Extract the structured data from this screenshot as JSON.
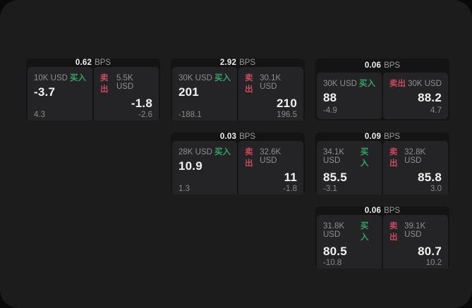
{
  "labels": {
    "bps_unit": "BPS",
    "buy": "买入",
    "sell": "卖出"
  },
  "colors": {
    "page_bg": "#0a0a0b",
    "panel_bg": "#1c1c1d",
    "card_header_bg": "#141415",
    "tile_bg": "#242426",
    "buy_green": "#36a269",
    "sell_red": "#c8495e"
  },
  "cards": [
    {
      "col": 1,
      "row": 1,
      "bps": "0.62",
      "buy": {
        "amount": "10K USD",
        "value": "-3.7",
        "delta": "4.3"
      },
      "sell": {
        "amount": "5.5K USD",
        "value": "-1.8",
        "delta": "-2.6"
      }
    },
    {
      "col": 2,
      "row": 1,
      "bps": "2.92",
      "buy": {
        "amount": "30K USD",
        "value": "201",
        "delta": "-188.1"
      },
      "sell": {
        "amount": "30.1K USD",
        "value": "210",
        "delta": "196.5"
      }
    },
    {
      "col": 3,
      "row": 1,
      "bps": "0.06",
      "buy": {
        "amount": "30K USD",
        "value": "88",
        "delta": "-4.9"
      },
      "sell": {
        "amount": "30K USD",
        "value": "88.2",
        "delta": "4.7"
      }
    },
    {
      "col": 2,
      "row": 2,
      "bps": "0.03",
      "buy": {
        "amount": "28K USD",
        "value": "10.9",
        "delta": "1.3"
      },
      "sell": {
        "amount": "32.6K USD",
        "value": "11",
        "delta": "-1.8"
      }
    },
    {
      "col": 3,
      "row": 2,
      "bps": "0.09",
      "buy": {
        "amount": "34.1K USD",
        "value": "85.5",
        "delta": "-3.1"
      },
      "sell": {
        "amount": "32.8K USD",
        "value": "85.8",
        "delta": "3.0"
      }
    },
    {
      "col": 3,
      "row": 3,
      "bps": "0.06",
      "buy": {
        "amount": "31.8K USD",
        "value": "80.5",
        "delta": "-10.8"
      },
      "sell": {
        "amount": "39.1K USD",
        "value": "80.7",
        "delta": "10.2"
      }
    }
  ]
}
